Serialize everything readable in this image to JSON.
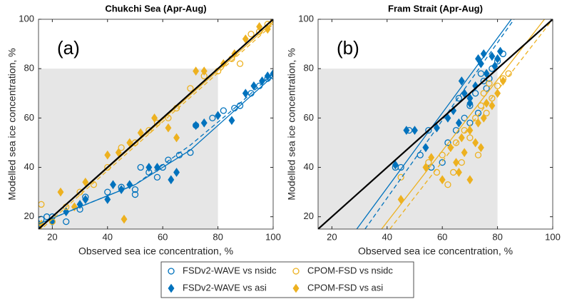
{
  "chart_data": [
    {
      "type": "scatter",
      "title": "Chukchi Sea (Apr-Aug)",
      "panel_label": "(a)",
      "x_label": "Observed sea ice concentration, %",
      "y_label": "Modelled sea ice concentration, %",
      "xlim": [
        15,
        100
      ],
      "ylim": [
        15,
        100
      ],
      "xticks": [
        20,
        40,
        60,
        80,
        100
      ],
      "yticks": [
        20,
        40,
        60,
        80,
        100
      ],
      "shaded_region": [
        80,
        80
      ],
      "one_to_one_line": true,
      "series": [
        {
          "name": "FSDv2-WAVE vs nsidc",
          "color": "#0072bd",
          "marker": "circle",
          "fit_style": "solid",
          "x": [
            16,
            18,
            20,
            25,
            30,
            32,
            40,
            45,
            50,
            50,
            52,
            55,
            58,
            60,
            62,
            66,
            70,
            72,
            78,
            82,
            86,
            88,
            92,
            95,
            98,
            100
          ],
          "values": [
            19,
            20,
            20,
            18,
            23,
            28,
            30,
            32,
            29,
            31,
            40,
            38,
            36,
            40,
            43,
            45,
            46,
            57,
            60,
            63,
            64,
            65,
            70,
            73,
            76,
            77
          ],
          "fit_x": [
            15,
            30,
            50,
            70,
            85,
            100
          ],
          "fit_y": [
            17,
            24,
            33,
            47,
            62,
            77
          ]
        },
        {
          "name": "FSDv2-WAVE vs asi",
          "color": "#0072bd",
          "marker": "diamond",
          "fit_style": "dashed",
          "x": [
            15,
            20,
            25,
            30,
            32,
            40,
            42,
            45,
            48,
            55,
            58,
            63,
            65,
            72,
            75,
            80,
            85,
            90,
            93,
            96,
            98,
            100
          ],
          "values": [
            17,
            18,
            22,
            25,
            27,
            27,
            33,
            31,
            33,
            40,
            40,
            35,
            38,
            57,
            58,
            61,
            59,
            70,
            73,
            75,
            77,
            78
          ],
          "fit_x": [
            15,
            30,
            50,
            70,
            85,
            100
          ],
          "fit_y": [
            17,
            24,
            33,
            49,
            63,
            78
          ]
        },
        {
          "name": "CPOM-FSD vs nsidc",
          "color": "#edb120",
          "marker": "circle",
          "fit_style": "solid",
          "x": [
            15,
            16,
            20,
            25,
            30,
            35,
            40,
            45,
            50,
            55,
            58,
            62,
            65,
            70,
            75,
            80,
            85,
            88,
            92,
            95,
            98,
            100
          ],
          "values": [
            16,
            25,
            18,
            24,
            30,
            33,
            40,
            48,
            50,
            55,
            58,
            60,
            64,
            72,
            77,
            79,
            84,
            82,
            94,
            95,
            98,
            99
          ],
          "fit_x": [
            15,
            100
          ],
          "fit_y": [
            15,
            99
          ]
        },
        {
          "name": "CPOM-FSD vs asi",
          "color": "#edb120",
          "marker": "diamond",
          "fit_style": "dashed",
          "x": [
            16,
            23,
            28,
            32,
            40,
            44,
            46,
            48,
            52,
            57,
            62,
            65,
            72,
            75,
            82,
            86,
            90,
            95,
            98,
            100
          ],
          "values": [
            17,
            30,
            24,
            34,
            45,
            46,
            19,
            50,
            54,
            60,
            56,
            52,
            79,
            79,
            82,
            86,
            92,
            97,
            96,
            100
          ],
          "fit_x": [
            15,
            100
          ],
          "fit_y": [
            14,
            98
          ]
        }
      ]
    },
    {
      "type": "scatter",
      "title": "Fram Strait (Apr-Aug)",
      "panel_label": "(b)",
      "x_label": "Observed sea ice concentration, %",
      "y_label": "Modelled sea ice concentration, %",
      "xlim": [
        15,
        100
      ],
      "ylim": [
        15,
        100
      ],
      "xticks": [
        20,
        40,
        60,
        80,
        100
      ],
      "yticks": [
        20,
        40,
        60,
        80,
        100
      ],
      "shaded_region": [
        80,
        80
      ],
      "one_to_one_line": true,
      "series": [
        {
          "name": "FSDv2-WAVE vs nsidc",
          "color": "#0072bd",
          "marker": "circle",
          "fit_style": "solid",
          "x": [
            43,
            45,
            48,
            55,
            52,
            56,
            60,
            62,
            65,
            66,
            68,
            70,
            72,
            74,
            75,
            76,
            78,
            80,
            82,
            70,
            73,
            77
          ],
          "values": [
            40,
            40,
            55,
            55,
            45,
            40,
            42,
            50,
            55,
            68,
            60,
            65,
            70,
            78,
            75,
            72,
            80,
            83,
            86,
            58,
            62,
            76
          ],
          "fit_x": [
            29,
            85
          ],
          "fit_y": [
            15,
            100
          ]
        },
        {
          "name": "FSDv2-WAVE vs asi",
          "color": "#0072bd",
          "marker": "diamond",
          "fit_style": "dashed",
          "x": [
            43,
            47,
            50,
            54,
            58,
            62,
            64,
            66,
            68,
            70,
            72,
            73,
            74,
            75,
            76,
            78,
            79,
            80,
            81,
            67,
            70
          ],
          "values": [
            41,
            55,
            55,
            48,
            56,
            60,
            63,
            58,
            70,
            66,
            73,
            84,
            82,
            86,
            78,
            85,
            81,
            84,
            87,
            75,
            68
          ],
          "fit_x": [
            32,
            86
          ],
          "fit_y": [
            15,
            100
          ]
        },
        {
          "name": "CPOM-FSD vs nsidc",
          "color": "#edb120",
          "marker": "circle",
          "fit_style": "solid",
          "x": [
            45,
            55,
            58,
            60,
            62,
            64,
            65,
            67,
            68,
            70,
            72,
            74,
            75,
            76,
            77,
            78,
            80,
            82,
            84,
            73
          ],
          "values": [
            36,
            42,
            38,
            45,
            33,
            38,
            50,
            42,
            55,
            52,
            60,
            65,
            70,
            62,
            74,
            68,
            73,
            76,
            78,
            45
          ],
          "fit_x": [
            38,
            97
          ],
          "fit_y": [
            15,
            100
          ]
        },
        {
          "name": "CPOM-FSD vs asi",
          "color": "#edb120",
          "marker": "diamond",
          "fit_style": "dashed",
          "x": [
            45,
            54,
            56,
            60,
            63,
            65,
            67,
            68,
            70,
            72,
            73,
            74,
            75,
            76,
            78,
            80,
            82,
            70,
            66
          ],
          "values": [
            27,
            40,
            44,
            35,
            48,
            42,
            52,
            46,
            55,
            50,
            58,
            48,
            60,
            66,
            65,
            70,
            75,
            35,
            38
          ],
          "fit_x": [
            41,
            100
          ],
          "fit_y": [
            15,
            100
          ]
        }
      ]
    }
  ]
}
